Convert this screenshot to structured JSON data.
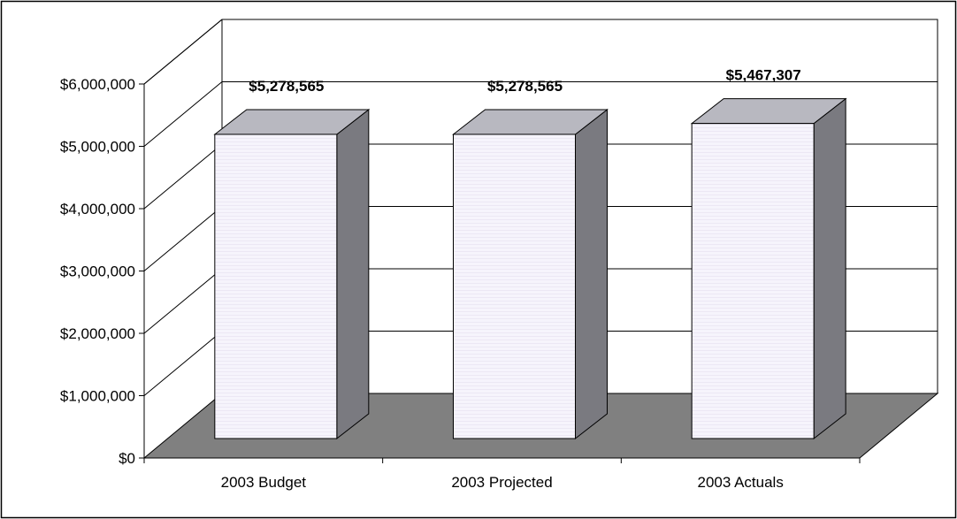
{
  "chart_data": {
    "type": "bar",
    "categories": [
      "2003 Budget",
      "2003 Projected",
      "2003 Actuals"
    ],
    "values": [
      5278565,
      5278565,
      5467307
    ],
    "data_labels": [
      "$5,278,565",
      "$5,278,565",
      "$5,467,307"
    ],
    "y_tick_labels": [
      "$0",
      "$1,000,000",
      "$2,000,000",
      "$3,000,000",
      "$4,000,000",
      "$5,000,000",
      "$6,000,000"
    ],
    "y_ticks": [
      0,
      1000000,
      2000000,
      3000000,
      4000000,
      5000000,
      6000000
    ],
    "ylim": [
      0,
      6000000
    ],
    "title": "",
    "xlabel": "",
    "ylabel": "",
    "grid": true,
    "legend": "none",
    "style": "3d",
    "colors": {
      "bar_front": "#f4f2fb",
      "bar_top": "#b8b8c0",
      "bar_side": "#7a7a80",
      "floor": "#808080",
      "gridline": "#000000",
      "border": "#000000"
    }
  }
}
